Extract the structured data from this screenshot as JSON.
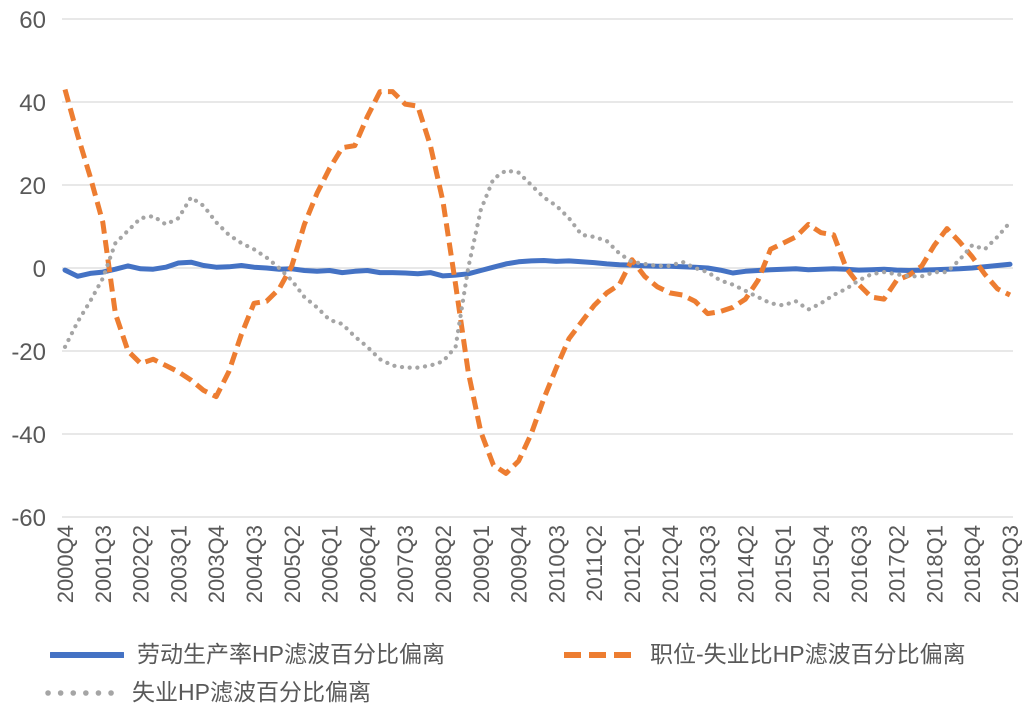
{
  "chart_data": {
    "type": "line",
    "title": "",
    "xlabel": "",
    "ylabel": "",
    "ylim": [
      -60,
      60
    ],
    "yticks": [
      60,
      40,
      20,
      0,
      -20,
      -40,
      -60
    ],
    "x_tick_step": 3,
    "grid": "horizontal",
    "legend_position": "bottom",
    "background": "#FFFFFF",
    "gridline_color": "#D9D9D9",
    "axis_text_color": "#595959",
    "categories": [
      "2000Q4",
      "2001Q1",
      "2001Q2",
      "2001Q3",
      "2001Q4",
      "2002Q1",
      "2002Q2",
      "2002Q3",
      "2002Q4",
      "2003Q1",
      "2003Q2",
      "2003Q3",
      "2003Q4",
      "2004Q1",
      "2004Q2",
      "2004Q3",
      "2004Q4",
      "2005Q1",
      "2005Q2",
      "2005Q3",
      "2005Q4",
      "2006Q1",
      "2006Q2",
      "2006Q3",
      "2006Q4",
      "2007Q1",
      "2007Q2",
      "2007Q3",
      "2007Q4",
      "2008Q1",
      "2008Q2",
      "2008Q3",
      "2008Q4",
      "2009Q1",
      "2009Q2",
      "2009Q3",
      "2009Q4",
      "2010Q1",
      "2010Q2",
      "2010Q3",
      "2010Q4",
      "2011Q1",
      "2011Q2",
      "2011Q3",
      "2011Q4",
      "2012Q1",
      "2012Q2",
      "2012Q3",
      "2012Q4",
      "2013Q1",
      "2013Q2",
      "2013Q3",
      "2013Q4",
      "2014Q1",
      "2014Q2",
      "2014Q3",
      "2014Q4",
      "2015Q1",
      "2015Q2",
      "2015Q3",
      "2015Q4",
      "2016Q1",
      "2016Q2",
      "2016Q3",
      "2016Q4",
      "2017Q1",
      "2017Q2",
      "2017Q3",
      "2017Q4",
      "2018Q1",
      "2018Q2",
      "2018Q3",
      "2018Q4",
      "2019Q1",
      "2019Q2",
      "2019Q3"
    ],
    "visible_tick_labels": [
      "2000Q4",
      "2001Q3",
      "2002Q2",
      "2003Q1",
      "2003Q4",
      "2004Q3",
      "2005Q2",
      "2006Q1",
      "2006Q4",
      "2007Q3",
      "2008Q2",
      "2009Q1",
      "2009Q4",
      "2010Q3",
      "2011Q2",
      "2012Q1",
      "2012Q4",
      "2013Q3",
      "2014Q2",
      "2015Q1",
      "2015Q4",
      "2016Q3",
      "2017Q2",
      "2018Q1",
      "2018Q4",
      "2019Q3"
    ],
    "series": [
      {
        "name": "劳动生产率HP滤波百分比偏离",
        "color": "#4472C4",
        "style": "solid",
        "values": [
          -0.5,
          -2.0,
          -1.3,
          -1.0,
          -0.3,
          0.5,
          -0.2,
          -0.3,
          0.2,
          1.2,
          1.4,
          0.6,
          0.2,
          0.3,
          0.6,
          0.2,
          0.0,
          -0.3,
          -0.2,
          -0.6,
          -0.8,
          -0.6,
          -1.1,
          -0.8,
          -0.6,
          -1.1,
          -1.1,
          -1.2,
          -1.4,
          -1.1,
          -1.9,
          -1.7,
          -1.4,
          -0.6,
          0.2,
          1.0,
          1.5,
          1.7,
          1.8,
          1.6,
          1.7,
          1.5,
          1.3,
          1.0,
          0.8,
          0.7,
          0.5,
          0.4,
          0.4,
          0.3,
          0.2,
          0.0,
          -0.5,
          -1.2,
          -0.8,
          -0.6,
          -0.4,
          -0.3,
          -0.2,
          -0.4,
          -0.3,
          -0.2,
          -0.3,
          -0.5,
          -0.4,
          -0.3,
          -0.5,
          -0.6,
          -0.5,
          -0.4,
          -0.3,
          -0.2,
          0.0,
          0.3,
          0.6,
          0.9
        ]
      },
      {
        "name": "职位-失业比HP滤波百分比偏离",
        "color": "#ED7D31",
        "style": "dashed",
        "values": [
          43,
          32,
          22,
          11,
          -11,
          -20,
          -23,
          -22,
          -23.5,
          -25,
          -27,
          -29.5,
          -31,
          -25,
          -16,
          -8.5,
          -8,
          -5,
          0.5,
          10.5,
          18,
          24,
          29,
          29.5,
          36.5,
          42.5,
          42.5,
          39.5,
          39,
          29.5,
          16,
          -4,
          -25,
          -39.5,
          -47.5,
          -49.5,
          -46.5,
          -40,
          -31.5,
          -24,
          -17,
          -13,
          -9,
          -6,
          -4,
          2,
          -2,
          -4.5,
          -6,
          -6.5,
          -8,
          -11,
          -10.5,
          -9.5,
          -7.5,
          -3,
          4.5,
          6,
          7.5,
          10.5,
          8.5,
          8,
          0,
          -4,
          -7,
          -7.5,
          -3,
          -1.7,
          0.5,
          5.5,
          9.5,
          6.3,
          2.7,
          -1.5,
          -5,
          -6.5
        ]
      },
      {
        "name": "失业HP滤波百分比偏离",
        "color": "#A5A5A5",
        "style": "dotted",
        "values": [
          -19,
          -13,
          -8,
          -2.5,
          6,
          9,
          12,
          12.5,
          10.5,
          12,
          17,
          15,
          11,
          8,
          6,
          4.5,
          2.5,
          0,
          -3,
          -7,
          -9.5,
          -12.5,
          -13.5,
          -16.5,
          -19,
          -22,
          -23.5,
          -24,
          -24,
          -23.5,
          -22.5,
          -19,
          0,
          14,
          21.5,
          23.5,
          23,
          20,
          17,
          15,
          12,
          8,
          7.5,
          6.5,
          3.5,
          1.5,
          1,
          0.5,
          0.5,
          1.5,
          0,
          -1,
          -3,
          -4,
          -5.5,
          -7,
          -8.5,
          -9,
          -8,
          -10,
          -8.5,
          -6.5,
          -5,
          -3,
          -1.5,
          -1,
          -1.5,
          -2,
          -2,
          -1,
          -1,
          2,
          5.5,
          4.5,
          7.5,
          11
        ]
      }
    ]
  }
}
